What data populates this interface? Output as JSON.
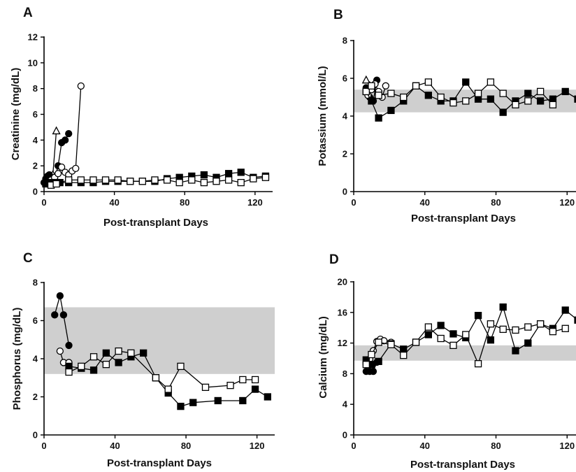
{
  "chart_data": [
    {
      "type": "line",
      "panel_label": "A",
      "xlabel": "Post-transplant Days",
      "ylabel": "Creatinine (mg/dL)",
      "xlim": [
        0,
        130
      ],
      "ylim": [
        0,
        12
      ],
      "xticks": [
        0,
        40,
        80,
        120
      ],
      "yticks": [
        0,
        2,
        4,
        6,
        8,
        10,
        12
      ],
      "normal_range": null,
      "series": [
        {
          "marker": "triangle-open",
          "x": [
            1,
            3,
            5,
            7
          ],
          "y": [
            0.8,
            1.0,
            1.3,
            4.7
          ]
        },
        {
          "marker": "circle-filled",
          "x": [
            0,
            1,
            2,
            3,
            4,
            6,
            8,
            10,
            12,
            14
          ],
          "y": [
            0.7,
            1.0,
            1.2,
            1.3,
            0.9,
            1.0,
            2.0,
            3.8,
            4.0,
            4.5
          ]
        },
        {
          "marker": "circle-open",
          "x": [
            2,
            4,
            6,
            8,
            10,
            12,
            14,
            16,
            18,
            21
          ],
          "y": [
            0.6,
            0.9,
            1.1,
            1.4,
            1.9,
            1.5,
            1.3,
            1.6,
            1.8,
            8.2
          ]
        },
        {
          "marker": "square-filled",
          "x": [
            1,
            3,
            5,
            7,
            9,
            14,
            21,
            28,
            35,
            42,
            49,
            56,
            63,
            70,
            77,
            84,
            91,
            98,
            105,
            112,
            119,
            126
          ],
          "y": [
            0.6,
            0.7,
            0.7,
            0.7,
            0.7,
            0.7,
            0.7,
            0.7,
            0.8,
            0.8,
            0.8,
            0.8,
            0.8,
            1.0,
            1.1,
            1.2,
            1.3,
            1.1,
            1.4,
            1.5,
            1.1,
            1.2
          ]
        },
        {
          "marker": "square-open",
          "x": [
            4,
            7,
            14,
            21,
            28,
            35,
            42,
            49,
            56,
            63,
            70,
            77,
            84,
            91,
            98,
            105,
            112,
            119,
            126
          ],
          "y": [
            0.5,
            0.6,
            0.9,
            0.9,
            0.9,
            0.9,
            0.9,
            0.8,
            0.8,
            0.9,
            0.9,
            0.7,
            0.9,
            0.7,
            0.8,
            0.9,
            0.7,
            1.0,
            1.1
          ]
        }
      ]
    },
    {
      "type": "line",
      "panel_label": "B",
      "xlabel": "Post-transplant Days",
      "ylabel": "Potassium (mmol/L)",
      "xlim": [
        0,
        125
      ],
      "ylim": [
        0,
        8
      ],
      "xticks": [
        0,
        40,
        80,
        120
      ],
      "yticks": [
        0,
        2,
        4,
        6,
        8
      ],
      "normal_range": [
        4.2,
        5.4
      ],
      "series": [
        {
          "marker": "triangle-open",
          "x": [
            7,
            9
          ],
          "y": [
            5.9,
            5.6
          ]
        },
        {
          "marker": "circle-filled",
          "x": [
            7,
            9,
            11,
            13
          ],
          "y": [
            5.5,
            5.0,
            4.8,
            5.9
          ]
        },
        {
          "marker": "circle-open",
          "x": [
            8,
            10,
            12,
            14,
            16,
            18
          ],
          "y": [
            5.1,
            5.4,
            5.7,
            5.3,
            5.0,
            5.6
          ]
        },
        {
          "marker": "square-filled",
          "x": [
            7,
            10,
            14,
            21,
            28,
            35,
            42,
            49,
            56,
            63,
            70,
            77,
            84,
            91,
            98,
            105,
            112,
            119,
            126
          ],
          "y": [
            5.3,
            4.8,
            3.9,
            4.3,
            4.8,
            5.6,
            5.1,
            4.8,
            4.8,
            5.8,
            4.9,
            4.9,
            4.2,
            4.8,
            5.2,
            4.8,
            4.9,
            5.3,
            4.9
          ]
        },
        {
          "marker": "square-open",
          "x": [
            7,
            10,
            14,
            21,
            28,
            35,
            42,
            49,
            56,
            63,
            70,
            77,
            84,
            91,
            98,
            105,
            112
          ],
          "y": [
            5.3,
            5.6,
            5.1,
            5.2,
            5.0,
            5.6,
            5.8,
            5.0,
            4.7,
            4.8,
            5.2,
            5.8,
            5.2,
            4.6,
            4.8,
            5.3,
            4.6
          ]
        }
      ]
    },
    {
      "type": "line",
      "panel_label": "C",
      "xlabel": "Post-transplant Days",
      "ylabel": "Phosphorus (mg/dL)",
      "xlim": [
        0,
        130
      ],
      "ylim": [
        0,
        8
      ],
      "xticks": [
        0,
        40,
        80,
        120
      ],
      "yticks": [
        0,
        2,
        4,
        6,
        8
      ],
      "normal_range": [
        3.2,
        6.7
      ],
      "series": [
        {
          "marker": "circle-filled",
          "x": [
            6,
            9,
            11,
            14
          ],
          "y": [
            6.3,
            7.3,
            6.3,
            4.7
          ]
        },
        {
          "marker": "circle-open",
          "x": [
            9,
            11,
            14
          ],
          "y": [
            4.4,
            3.8,
            3.8
          ]
        },
        {
          "marker": "square-filled",
          "x": [
            14,
            21,
            28,
            35,
            42,
            49,
            56,
            63,
            70,
            77,
            84,
            98,
            112,
            119,
            126
          ],
          "y": [
            3.6,
            3.5,
            3.4,
            4.3,
            3.8,
            4.1,
            4.3,
            3.0,
            2.2,
            1.5,
            1.7,
            1.8,
            1.8,
            2.4,
            2.0
          ]
        },
        {
          "marker": "square-open",
          "x": [
            14,
            21,
            28,
            35,
            42,
            49,
            63,
            70,
            77,
            91,
            105,
            112,
            119
          ],
          "y": [
            3.3,
            3.6,
            4.1,
            3.7,
            4.4,
            4.3,
            3.0,
            2.4,
            3.6,
            2.5,
            2.6,
            2.9,
            2.9
          ]
        }
      ]
    },
    {
      "type": "line",
      "panel_label": "D",
      "xlabel": "Post-transplant Days",
      "ylabel": "Calcium (mg/dL)",
      "xlim": [
        0,
        125
      ],
      "ylim": [
        0,
        20
      ],
      "xticks": [
        0,
        40,
        80,
        120
      ],
      "yticks": [
        0,
        4,
        8,
        12,
        16,
        20
      ],
      "normal_range": [
        9.7,
        11.7
      ],
      "series": [
        {
          "marker": "circle-filled",
          "x": [
            7,
            9,
            11,
            13
          ],
          "y": [
            8.3,
            8.3,
            8.3,
            9.5
          ]
        },
        {
          "marker": "circle-open",
          "x": [
            7,
            9,
            11,
            13,
            15,
            17,
            21
          ],
          "y": [
            9.2,
            9.9,
            11.0,
            12.2,
            12.5,
            12.3,
            12.1
          ]
        },
        {
          "marker": "square-filled",
          "x": [
            7,
            10,
            14,
            21,
            28,
            35,
            42,
            49,
            56,
            63,
            70,
            77,
            84,
            91,
            98,
            105,
            112,
            119,
            126
          ],
          "y": [
            9.8,
            9.2,
            9.6,
            11.9,
            11.2,
            12.1,
            13.1,
            14.3,
            13.2,
            12.7,
            15.6,
            12.4,
            16.7,
            11.0,
            12.0,
            14.5,
            13.9,
            16.3,
            15.0
          ]
        },
        {
          "marker": "square-open",
          "x": [
            7,
            10,
            14,
            21,
            28,
            35,
            42,
            49,
            56,
            63,
            70,
            77,
            84,
            91,
            98,
            105,
            112,
            119
          ],
          "y": [
            9.2,
            10.5,
            12.1,
            11.8,
            10.4,
            12.1,
            14.1,
            12.6,
            11.7,
            13.1,
            9.3,
            14.5,
            13.8,
            13.7,
            14.1,
            14.5,
            13.5,
            13.9
          ]
        }
      ]
    }
  ]
}
